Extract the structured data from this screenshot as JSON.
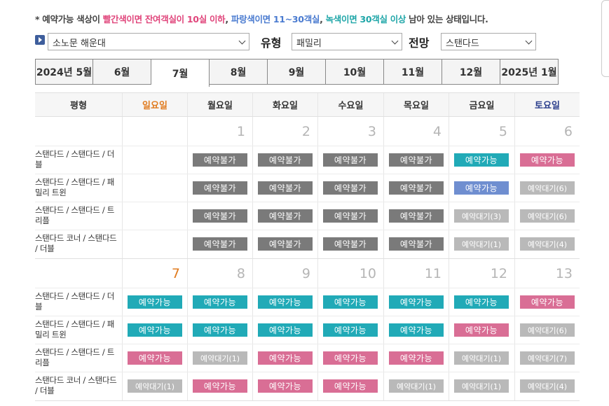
{
  "notice": {
    "prefix": "* 예약가능 색상이 ",
    "red_part": "빨간색이면 잔여객실이 10실 이하",
    "sep1": ", ",
    "blue_part": "파랑색이면 11~30객실",
    "sep2": ", ",
    "green_part": "녹색이면 30객실 이상",
    "suffix": " 남아 있는 상태입니다."
  },
  "filters": {
    "hotel": "소노문 해운대",
    "type_label": "유형",
    "type_value": "패밀리",
    "view_label": "전망",
    "view_value": "스탠다드"
  },
  "months": [
    {
      "label": "2024년 5월",
      "active": false
    },
    {
      "label": "6월",
      "active": false
    },
    {
      "label": "7월",
      "active": true
    },
    {
      "label": "8월",
      "active": false
    },
    {
      "label": "9월",
      "active": false
    },
    {
      "label": "10월",
      "active": false
    },
    {
      "label": "11월",
      "active": false
    },
    {
      "label": "12월",
      "active": false
    },
    {
      "label": "2025년 1월",
      "active": false
    }
  ],
  "header": [
    "평형",
    "일요일",
    "월요일",
    "화요일",
    "수요일",
    "목요일",
    "금요일",
    "토요일"
  ],
  "room_types": [
    "스탠다드 / 스탠다드 / 더블",
    "스탠다드 / 스탠다드 / 패밀리 트윈",
    "스탠다드 / 스탠다드 / 트리플",
    "스탠다드 코너 / 스탠다드 / 더블"
  ],
  "colors": {
    "gray": "#7a7a7a",
    "teal": "#21aab7",
    "pink": "#d96e95",
    "blue": "#6f8ed0",
    "light": "#b9b9b9"
  },
  "weeks": [
    {
      "dates": [
        "",
        "1",
        "2",
        "3",
        "4",
        "5",
        "6"
      ],
      "rows": [
        [
          null,
          {
            "t": "예약불가",
            "c": "gray"
          },
          {
            "t": "예약불가",
            "c": "gray"
          },
          {
            "t": "예약불가",
            "c": "gray"
          },
          {
            "t": "예약불가",
            "c": "gray"
          },
          {
            "t": "예약가능",
            "c": "teal"
          },
          {
            "t": "예약가능",
            "c": "pink"
          }
        ],
        [
          null,
          {
            "t": "예약불가",
            "c": "gray"
          },
          {
            "t": "예약불가",
            "c": "gray"
          },
          {
            "t": "예약불가",
            "c": "gray"
          },
          {
            "t": "예약불가",
            "c": "gray"
          },
          {
            "t": "예약가능",
            "c": "blue"
          },
          {
            "t": "예약대기(6)",
            "c": "light"
          }
        ],
        [
          null,
          {
            "t": "예약불가",
            "c": "gray"
          },
          {
            "t": "예약불가",
            "c": "gray"
          },
          {
            "t": "예약불가",
            "c": "gray"
          },
          {
            "t": "예약불가",
            "c": "gray"
          },
          {
            "t": "예약대기(3)",
            "c": "light"
          },
          {
            "t": "예약대기(6)",
            "c": "light"
          }
        ],
        [
          null,
          {
            "t": "예약불가",
            "c": "gray"
          },
          {
            "t": "예약불가",
            "c": "gray"
          },
          {
            "t": "예약불가",
            "c": "gray"
          },
          {
            "t": "예약불가",
            "c": "gray"
          },
          {
            "t": "예약대기(1)",
            "c": "light"
          },
          {
            "t": "예약대기(4)",
            "c": "light"
          }
        ]
      ]
    },
    {
      "dates": [
        "7",
        "8",
        "9",
        "10",
        "11",
        "12",
        "13"
      ],
      "rows": [
        [
          {
            "t": "예약가능",
            "c": "teal"
          },
          {
            "t": "예약가능",
            "c": "teal"
          },
          {
            "t": "예약가능",
            "c": "teal"
          },
          {
            "t": "예약가능",
            "c": "teal"
          },
          {
            "t": "예약가능",
            "c": "teal"
          },
          {
            "t": "예약가능",
            "c": "teal"
          },
          {
            "t": "예약가능",
            "c": "pink"
          }
        ],
        [
          {
            "t": "예약가능",
            "c": "teal"
          },
          {
            "t": "예약가능",
            "c": "teal"
          },
          {
            "t": "예약가능",
            "c": "teal"
          },
          {
            "t": "예약가능",
            "c": "teal"
          },
          {
            "t": "예약가능",
            "c": "teal"
          },
          {
            "t": "예약가능",
            "c": "pink"
          },
          {
            "t": "예약대기(6)",
            "c": "light"
          }
        ],
        [
          {
            "t": "예약가능",
            "c": "pink"
          },
          {
            "t": "예약대기(1)",
            "c": "light"
          },
          {
            "t": "예약가능",
            "c": "pink"
          },
          {
            "t": "예약가능",
            "c": "pink"
          },
          {
            "t": "예약가능",
            "c": "pink"
          },
          {
            "t": "예약대기(1)",
            "c": "light"
          },
          {
            "t": "예약대기(7)",
            "c": "light"
          }
        ],
        [
          {
            "t": "예약대기(1)",
            "c": "light"
          },
          {
            "t": "예약가능",
            "c": "pink"
          },
          {
            "t": "예약가능",
            "c": "pink"
          },
          {
            "t": "예약가능",
            "c": "pink"
          },
          {
            "t": "예약대기(1)",
            "c": "light"
          },
          {
            "t": "예약대기(1)",
            "c": "light"
          },
          {
            "t": "예약대기(4)",
            "c": "light"
          }
        ]
      ]
    }
  ]
}
